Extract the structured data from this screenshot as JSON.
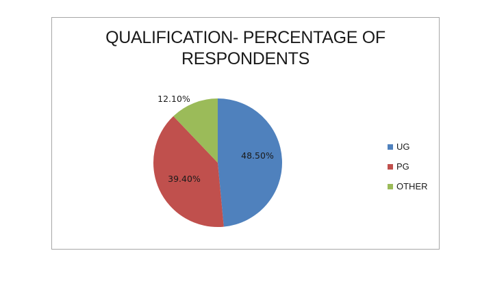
{
  "chart_data": {
    "type": "pie",
    "title": [
      "QUALIFICATION- PERCENTAGE OF",
      "RESPONDENTS"
    ],
    "labels": [
      "UG",
      "PG",
      "OTHER"
    ],
    "values": [
      48.5,
      39.4,
      12.1
    ],
    "value_labels": [
      "48.50%",
      "39.40%",
      "12.10%"
    ],
    "colors": [
      "#4f81bd",
      "#c0504d",
      "#9bbb59"
    ],
    "legend": "right"
  }
}
